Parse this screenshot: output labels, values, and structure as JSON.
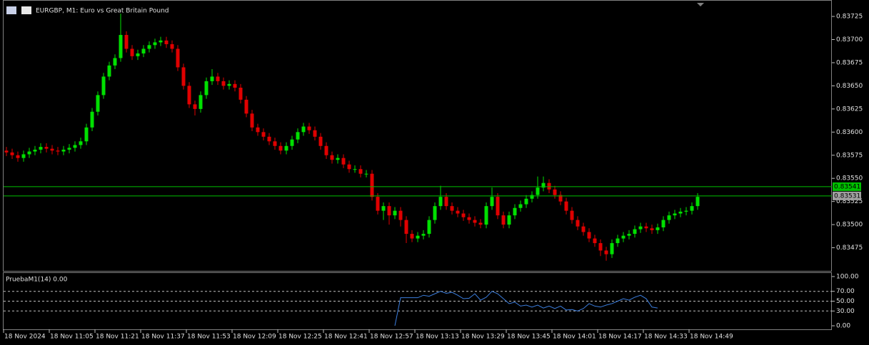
{
  "chart_data": [
    {
      "type": "candlestick",
      "title": "EURGBP, M1:  Euro vs Great Britain Pound",
      "open": [
        0.8358,
        0.83578,
        0.83575,
        0.83572,
        0.83576,
        0.83579,
        0.83581,
        0.83584,
        0.83582,
        0.8358,
        0.83579,
        0.83581,
        0.83583,
        0.83586,
        0.8359,
        0.83605,
        0.83622,
        0.8364,
        0.8366,
        0.83672,
        0.8368,
        0.83705,
        0.8369,
        0.83682,
        0.83685,
        0.8369,
        0.83694,
        0.83697,
        0.83699,
        0.83695,
        0.8369,
        0.8367,
        0.8365,
        0.8363,
        0.83625,
        0.8364,
        0.83655,
        0.8366,
        0.83655,
        0.8365,
        0.83652,
        0.83648,
        0.83635,
        0.8362,
        0.83605,
        0.836,
        0.83595,
        0.8359,
        0.83585,
        0.8358,
        0.83585,
        0.83592,
        0.836,
        0.83606,
        0.83602,
        0.83595,
        0.83585,
        0.83575,
        0.8357,
        0.83572,
        0.83565,
        0.8356,
        0.8356,
        0.83555,
        0.83555,
        0.8353,
        0.83515,
        0.8352,
        0.8351,
        0.83515,
        0.83505,
        0.8349,
        0.83485,
        0.83488,
        0.8349,
        0.83505,
        0.8352,
        0.8353,
        0.8352,
        0.83515,
        0.83512,
        0.83508,
        0.83505,
        0.83502,
        0.835,
        0.8352,
        0.8353,
        0.8351,
        0.835,
        0.8351,
        0.83518,
        0.83522,
        0.83528,
        0.83532,
        0.8354,
        0.83545,
        0.83538,
        0.83532,
        0.83525,
        0.83515,
        0.83505,
        0.83498,
        0.83492,
        0.83485,
        0.8348,
        0.83472,
        0.83468,
        0.8348,
        0.83485,
        0.83488,
        0.8349,
        0.83495,
        0.83498,
        0.83496,
        0.83494,
        0.83497,
        0.83505,
        0.8351,
        0.83512,
        0.83514,
        0.83515,
        0.8352
      ],
      "high": [
        0.83584,
        0.83582,
        0.83579,
        0.8358,
        0.83583,
        0.83585,
        0.83588,
        0.83588,
        0.83586,
        0.83584,
        0.83585,
        0.83587,
        0.8359,
        0.83594,
        0.83609,
        0.83626,
        0.83644,
        0.83664,
        0.83676,
        0.83684,
        0.83728,
        0.83709,
        0.83694,
        0.83689,
        0.83694,
        0.83698,
        0.83701,
        0.83703,
        0.83703,
        0.83699,
        0.83694,
        0.83674,
        0.83654,
        0.83634,
        0.83644,
        0.83659,
        0.83668,
        0.83664,
        0.83659,
        0.83656,
        0.83656,
        0.83652,
        0.83639,
        0.83624,
        0.83609,
        0.83604,
        0.83599,
        0.83594,
        0.83589,
        0.83589,
        0.83596,
        0.83604,
        0.8361,
        0.8361,
        0.83606,
        0.83599,
        0.83589,
        0.83579,
        0.83576,
        0.83576,
        0.83569,
        0.83564,
        0.83564,
        0.83559,
        0.83559,
        0.83534,
        0.83524,
        0.83524,
        0.83519,
        0.83519,
        0.83509,
        0.83494,
        0.83492,
        0.83494,
        0.83509,
        0.83524,
        0.83542,
        0.83534,
        0.83524,
        0.83519,
        0.83516,
        0.83512,
        0.83509,
        0.83506,
        0.83524,
        0.8354,
        0.83534,
        0.83514,
        0.83514,
        0.83522,
        0.83526,
        0.83532,
        0.83536,
        0.83552,
        0.83552,
        0.83549,
        0.83542,
        0.83536,
        0.83529,
        0.83519,
        0.83509,
        0.83502,
        0.83496,
        0.83489,
        0.83484,
        0.83476,
        0.83484,
        0.83489,
        0.83492,
        0.83494,
        0.83499,
        0.83502,
        0.83502,
        0.835,
        0.83501,
        0.83509,
        0.83514,
        0.83516,
        0.83518,
        0.83519,
        0.83524,
        0.83534
      ],
      "low": [
        0.83574,
        0.83571,
        0.83568,
        0.83568,
        0.83572,
        0.83575,
        0.83577,
        0.83578,
        0.83576,
        0.83575,
        0.83575,
        0.83577,
        0.83579,
        0.83582,
        0.83586,
        0.83601,
        0.83618,
        0.83636,
        0.83656,
        0.83668,
        0.83676,
        0.83686,
        0.83678,
        0.83678,
        0.83681,
        0.83686,
        0.8369,
        0.83693,
        0.83691,
        0.83686,
        0.83666,
        0.83646,
        0.83626,
        0.83618,
        0.83621,
        0.83636,
        0.83651,
        0.83651,
        0.83646,
        0.83646,
        0.83644,
        0.83631,
        0.83616,
        0.83601,
        0.83596,
        0.83591,
        0.83586,
        0.83581,
        0.83576,
        0.83576,
        0.83581,
        0.83588,
        0.83596,
        0.83598,
        0.83591,
        0.83581,
        0.83571,
        0.83566,
        0.83566,
        0.83561,
        0.83556,
        0.83556,
        0.83551,
        0.83551,
        0.83526,
        0.83511,
        0.83505,
        0.835,
        0.83506,
        0.83498,
        0.8348,
        0.83481,
        0.83481,
        0.83484,
        0.83486,
        0.83501,
        0.83516,
        0.83516,
        0.83511,
        0.83508,
        0.83504,
        0.83501,
        0.83498,
        0.83496,
        0.83496,
        0.83516,
        0.83506,
        0.83496,
        0.83496,
        0.83506,
        0.83514,
        0.83518,
        0.83524,
        0.83528,
        0.83536,
        0.83534,
        0.83528,
        0.83521,
        0.83511,
        0.83501,
        0.83494,
        0.83488,
        0.83481,
        0.83476,
        0.83466,
        0.83461,
        0.83464,
        0.83476,
        0.83481,
        0.83484,
        0.83486,
        0.83491,
        0.83492,
        0.8349,
        0.8349,
        0.83493,
        0.83501,
        0.83506,
        0.83508,
        0.8351,
        0.83511,
        0.83516
      ],
      "close": [
        0.83578,
        0.83575,
        0.83572,
        0.83576,
        0.83579,
        0.83581,
        0.83584,
        0.83582,
        0.8358,
        0.83579,
        0.83581,
        0.83583,
        0.83586,
        0.8359,
        0.83605,
        0.83622,
        0.8364,
        0.8366,
        0.83672,
        0.8368,
        0.83705,
        0.8369,
        0.83682,
        0.83685,
        0.8369,
        0.83694,
        0.83697,
        0.83699,
        0.83695,
        0.8369,
        0.8367,
        0.8365,
        0.8363,
        0.83625,
        0.8364,
        0.83655,
        0.8366,
        0.83655,
        0.8365,
        0.83652,
        0.83648,
        0.83635,
        0.8362,
        0.83605,
        0.836,
        0.83595,
        0.8359,
        0.83585,
        0.8358,
        0.83585,
        0.83592,
        0.836,
        0.83606,
        0.83602,
        0.83595,
        0.83585,
        0.83575,
        0.8357,
        0.83572,
        0.83565,
        0.8356,
        0.8356,
        0.83555,
        0.83555,
        0.8353,
        0.83515,
        0.8352,
        0.8351,
        0.83515,
        0.83505,
        0.8349,
        0.83485,
        0.83488,
        0.8349,
        0.83505,
        0.8352,
        0.8353,
        0.8352,
        0.83515,
        0.83512,
        0.83508,
        0.83505,
        0.83502,
        0.835,
        0.8352,
        0.8353,
        0.8351,
        0.835,
        0.8351,
        0.83518,
        0.83522,
        0.83528,
        0.83532,
        0.8354,
        0.83545,
        0.83538,
        0.83532,
        0.83525,
        0.83515,
        0.83505,
        0.83498,
        0.83492,
        0.83485,
        0.8348,
        0.83472,
        0.83468,
        0.8348,
        0.83485,
        0.83488,
        0.8349,
        0.83495,
        0.83498,
        0.83496,
        0.83494,
        0.83497,
        0.83505,
        0.8351,
        0.83512,
        0.83514,
        0.83515,
        0.8352,
        0.8353
      ],
      "up_color": "#00e000",
      "down_color": "#e00000",
      "ylim": [
        0.8345,
        0.83742
      ],
      "yticks": [
        0.83725,
        {
          "value": 0.837,
          "label": "0.83700"
        },
        0.83675,
        {
          "value": 0.8365,
          "label": "0.83650"
        },
        0.83625,
        {
          "value": 0.836,
          "label": "0.83600"
        },
        0.83575,
        {
          "value": 0.8355,
          "label": "0.83550"
        },
        0.83525,
        {
          "value": 0.835,
          "label": "0.83500"
        },
        0.83475
      ],
      "price_lines": [
        0.83541,
        0.83531
      ],
      "price_line_color": "#00c000",
      "price_label_colors": [
        "#00c000",
        "#a0a0a0"
      ],
      "xlim": [
        0,
        145
      ],
      "xticks": [
        {
          "value": 0,
          "label": "18 Nov 2024"
        },
        {
          "value": 8,
          "label": "18 Nov 11:05"
        },
        {
          "value": 16,
          "label": "18 Nov 11:21"
        },
        {
          "value": 24,
          "label": "18 Nov 11:37"
        },
        {
          "value": 32,
          "label": "18 Nov 11:53"
        },
        {
          "value": 40,
          "label": "18 Nov 12:09"
        },
        {
          "value": 48,
          "label": "18 Nov 12:25"
        },
        {
          "value": 56,
          "label": "18 Nov 12:41"
        },
        {
          "value": 64,
          "label": "18 Nov 12:57"
        },
        {
          "value": 72,
          "label": "18 Nov 13:13"
        },
        {
          "value": 80,
          "label": "18 Nov 13:29"
        },
        {
          "value": 88,
          "label": "18 Nov 13:45"
        },
        {
          "value": 96,
          "label": "18 Nov 14:01"
        },
        {
          "value": 104,
          "label": "18 Nov 14:17"
        },
        {
          "value": 112,
          "label": "18 Nov 14:33"
        },
        {
          "value": 120,
          "label": "18 Nov 14:49"
        }
      ]
    },
    {
      "type": "line",
      "title": "PruebaM1(14) 0.00",
      "series": [
        {
          "color": "#3b7ddd",
          "values": [
            null,
            null,
            null,
            null,
            null,
            null,
            null,
            null,
            null,
            null,
            null,
            null,
            null,
            null,
            null,
            null,
            null,
            null,
            null,
            null,
            null,
            null,
            null,
            null,
            null,
            null,
            null,
            null,
            null,
            null,
            null,
            null,
            null,
            null,
            null,
            null,
            null,
            null,
            null,
            null,
            null,
            null,
            null,
            null,
            null,
            null,
            null,
            null,
            null,
            null,
            null,
            null,
            null,
            null,
            null,
            null,
            null,
            null,
            null,
            null,
            null,
            null,
            null,
            null,
            null,
            null,
            null,
            null,
            0,
            57,
            57,
            57,
            57,
            62,
            60,
            65,
            70,
            66,
            68,
            62,
            55,
            56,
            65,
            52,
            58,
            70,
            65,
            55,
            45,
            48,
            40,
            42,
            38,
            42,
            36,
            40,
            35,
            40,
            32,
            33,
            30,
            35,
            45,
            40,
            38,
            42,
            45,
            50,
            55,
            52,
            58,
            62,
            55,
            38,
            36,
            null,
            null,
            null,
            null,
            null,
            null,
            null
          ]
        }
      ],
      "ylim": [
        -7.2,
        107.2
      ],
      "yticks": [
        {
          "value": 100,
          "label": "100.00"
        },
        {
          "value": 70,
          "label": "70.00"
        },
        {
          "value": 50,
          "label": "50.00"
        },
        {
          "value": 30,
          "label": "30.00"
        },
        {
          "value": 0,
          "label": "0.00"
        }
      ],
      "levels": [
        70,
        50,
        30
      ]
    }
  ]
}
